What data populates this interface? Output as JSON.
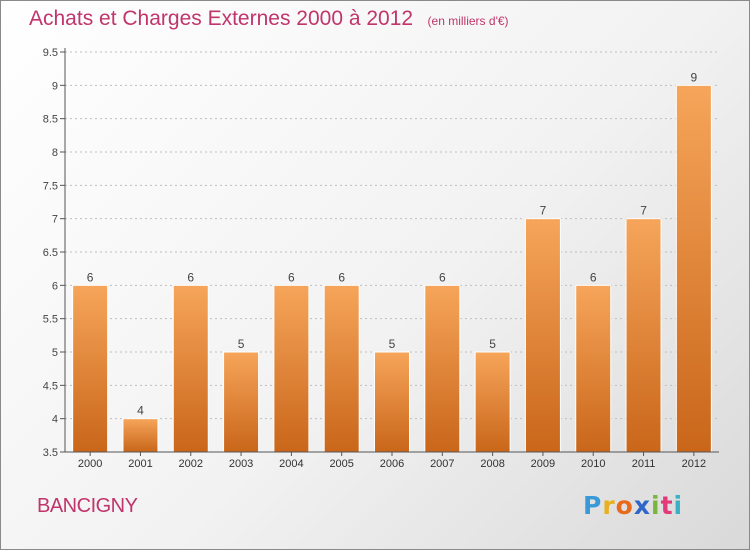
{
  "header": {
    "title": "Achats et Charges Externes 2000 à 2012",
    "subtitle": "(en milliers d'€)"
  },
  "commune_name": "BANCIGNY",
  "logo": {
    "letters": [
      "P",
      "r",
      "o",
      "x",
      "i",
      "t",
      "i"
    ],
    "colors": [
      "#3a9ad9",
      "#e8b021",
      "#e86a1c",
      "#2f66c7",
      "#7ab53c",
      "#e23a79",
      "#3ab0c7"
    ]
  },
  "colors": {
    "bar_top": "#f6a55a",
    "bar_bottom": "#c9661a",
    "axis": "#555555",
    "grid": "#bfbfbf",
    "title": "#c0356b"
  },
  "chart_data": {
    "type": "bar",
    "title": "Achats et Charges Externes 2000 à 2012",
    "subtitle": "(en milliers d'€)",
    "xlabel": "",
    "ylabel": "",
    "categories": [
      "2000",
      "2001",
      "2002",
      "2003",
      "2004",
      "2005",
      "2006",
      "2007",
      "2008",
      "2009",
      "2010",
      "2011",
      "2012"
    ],
    "values": [
      6,
      4,
      6,
      5,
      6,
      6,
      5,
      6,
      5,
      7,
      6,
      7,
      9
    ],
    "ylim": [
      3.5,
      9.5
    ],
    "yticks": [
      "3.5",
      "4",
      "4.5",
      "5",
      "5.5",
      "6",
      "6.5",
      "7",
      "7.5",
      "8",
      "8.5",
      "9",
      "9.5"
    ],
    "grid": true,
    "legend": "none"
  }
}
